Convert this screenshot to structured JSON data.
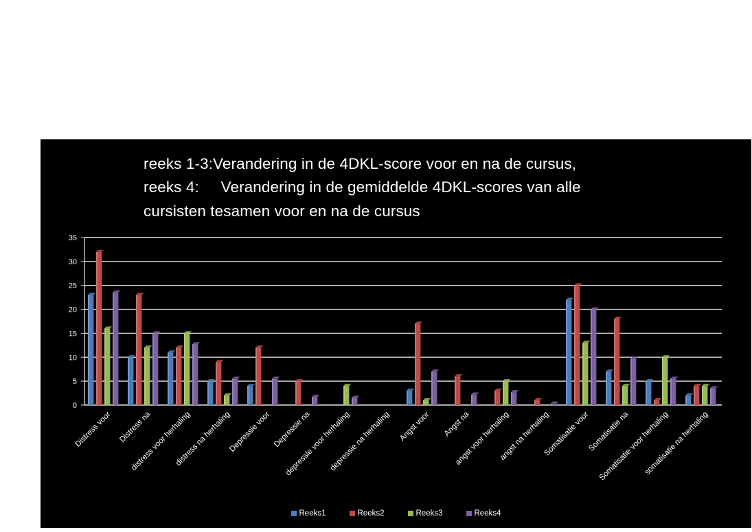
{
  "chart_data": {
    "type": "bar",
    "title_lines": [
      "reeks 1-3:Verandering in de 4DKL-score voor en na de cursus,",
      "reeks 4:     Verandering in de gemiddelde 4DKL-scores van alle",
      "cursisten tesamen voor en na de cursus"
    ],
    "categories": [
      "Distress voor",
      "Distress na",
      "distress voor herhaling",
      "distress na herhaling",
      "Depressie voor",
      "Depressie na",
      "depressie voor herhaling",
      "depressie na herhaling",
      "Angst voor",
      "Angst na",
      "angst voor herhaling",
      "angst na herhaling",
      "Somatisatie voor",
      "Somatisatie na",
      "Somatisatie voor herhaling",
      "somatisatie na herhaling"
    ],
    "series": [
      {
        "name": "Reeks1",
        "color": "#4a7ebb",
        "values": [
          23,
          10,
          11,
          5,
          4,
          0,
          0,
          0,
          3,
          0,
          0,
          0,
          22,
          7,
          5,
          2
        ]
      },
      {
        "name": "Reeks2",
        "color": "#be4b48",
        "values": [
          32,
          23,
          12,
          9,
          12,
          5,
          0,
          0,
          17,
          6,
          3,
          1,
          25,
          18,
          1,
          4
        ]
      },
      {
        "name": "Reeks3",
        "color": "#98b954",
        "values": [
          16,
          12,
          15,
          2,
          0,
          0,
          4,
          0,
          1,
          0,
          5,
          0,
          13,
          4,
          10,
          4
        ]
      },
      {
        "name": "Reeks4",
        "color": "#7d60a0",
        "values": [
          23.5,
          15,
          12.7,
          5.5,
          5.5,
          1.7,
          1.5,
          0,
          7,
          2.2,
          2.7,
          0.3,
          20,
          9.7,
          5.5,
          3.5
        ]
      }
    ],
    "ylim": [
      0,
      35
    ],
    "yticks": [
      0,
      5,
      10,
      15,
      20,
      25,
      30,
      35
    ],
    "grid": true,
    "legend_position": "bottom"
  }
}
